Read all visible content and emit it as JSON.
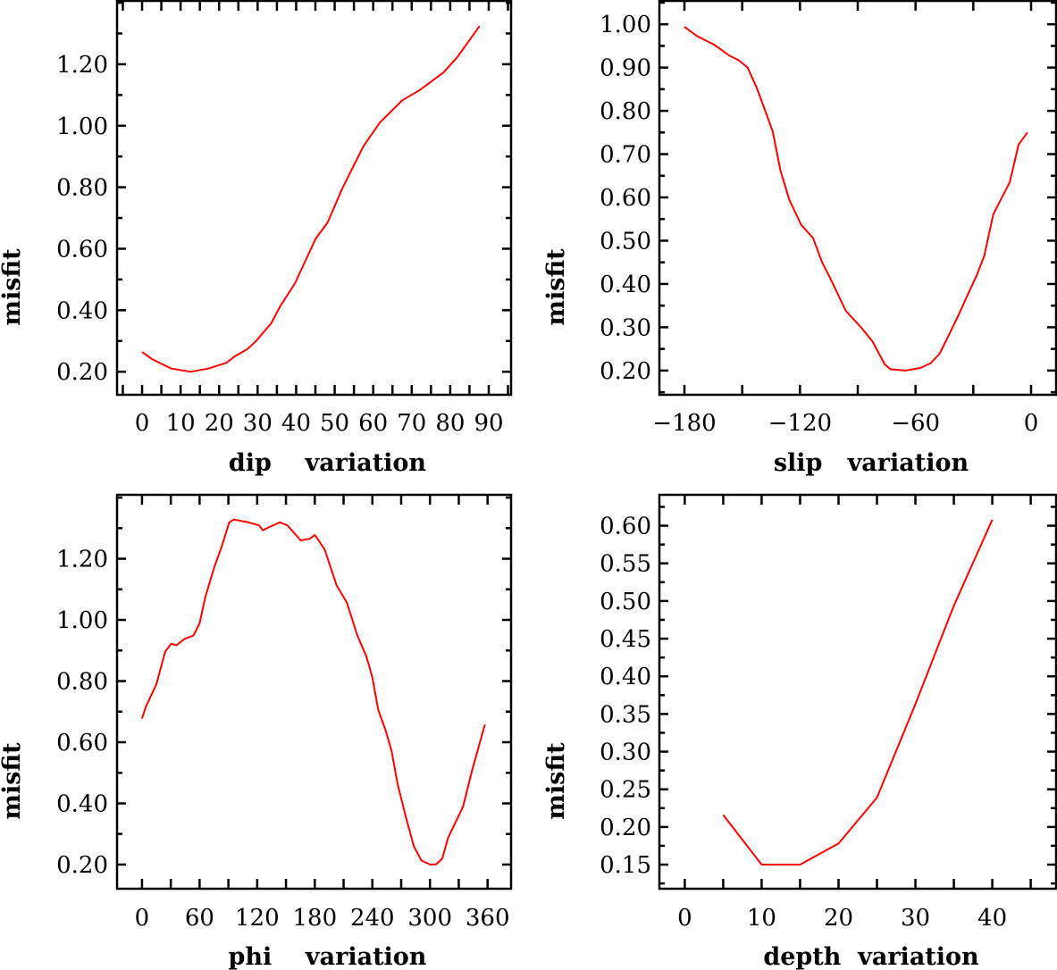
{
  "chart_data": [
    {
      "type": "line",
      "title": "",
      "xlabel": "dip    variation",
      "ylabel": "misfit",
      "color": "#ff0000",
      "xlim": [
        -6.5,
        95.8
      ],
      "ylim": [
        0.125,
        1.406
      ],
      "xticks": {
        "major": [
          0,
          10,
          20,
          30,
          40,
          50,
          60,
          70,
          80,
          90
        ],
        "labels": [
          "0",
          "10",
          "20",
          "30",
          "40",
          "50",
          "60",
          "70",
          "80",
          "90"
        ],
        "minor_step": 5
      },
      "yticks": {
        "major": [
          0.2,
          0.4,
          0.6,
          0.8,
          1.0,
          1.2
        ],
        "labels": [
          "0.20",
          "0.40",
          "0.60",
          "0.80",
          "1.00",
          "1.20"
        ],
        "minor_step": 0.1
      },
      "x": [
        0,
        2.6,
        7.6,
        12.6,
        17.2,
        21.9,
        24.2,
        27.3,
        29.6,
        33.5,
        35.8,
        39.7,
        45.1,
        48.2,
        52,
        57.4,
        61.7,
        67.5,
        72.1,
        78.3,
        81.8,
        87.6
      ],
      "y": [
        0.264,
        0.241,
        0.21,
        0.2,
        0.21,
        0.229,
        0.251,
        0.273,
        0.3,
        0.357,
        0.411,
        0.488,
        0.633,
        0.686,
        0.797,
        0.932,
        1.01,
        1.082,
        1.116,
        1.174,
        1.222,
        1.324
      ]
    },
    {
      "type": "line",
      "title": "",
      "xlabel": "slip   variation",
      "ylabel": "misfit",
      "color": "#ff0000",
      "xlim": [
        -193,
        13
      ],
      "ylim": [
        0.144,
        1.054
      ],
      "xticks": {
        "major": [
          -180,
          -120,
          -60,
          0
        ],
        "labels": [
          "−180",
          "−120",
          "−60",
          "0"
        ],
        "minor_step": 30
      },
      "yticks": {
        "major": [
          0.2,
          0.3,
          0.4,
          0.5,
          0.6,
          0.7,
          0.8,
          0.9,
          1.0
        ],
        "labels": [
          "0.20",
          "0.30",
          "0.40",
          "0.50",
          "0.60",
          "0.70",
          "0.80",
          "0.90",
          "1.00"
        ],
        "minor_step": 0.05
      },
      "x": [
        -180,
        -173.5,
        -164.3,
        -156.5,
        -151.9,
        -147.2,
        -142.6,
        -138,
        -134.1,
        -130.2,
        -125.6,
        -119.4,
        -113.2,
        -108.6,
        -103.9,
        -96.2,
        -88.5,
        -82.3,
        -76.1,
        -73,
        -65.3,
        -57.5,
        -52.1,
        -47.5,
        -42.1,
        -37.4,
        -32.8,
        -28.2,
        -24.3,
        -19.6,
        -11.1,
        -6.5,
        -1.9
      ],
      "y": [
        0.994,
        0.973,
        0.952,
        0.927,
        0.917,
        0.9,
        0.855,
        0.8,
        0.752,
        0.663,
        0.595,
        0.537,
        0.506,
        0.451,
        0.41,
        0.338,
        0.301,
        0.267,
        0.215,
        0.203,
        0.2,
        0.206,
        0.217,
        0.239,
        0.287,
        0.331,
        0.376,
        0.42,
        0.465,
        0.561,
        0.635,
        0.722,
        0.75
      ]
    },
    {
      "type": "line",
      "title": "",
      "xlabel": "phi    variation",
      "ylabel": "misfit",
      "color": "#ff0000",
      "xlim": [
        -26,
        384.5
      ],
      "ylim": [
        0.121,
        1.409
      ],
      "xticks": {
        "major": [
          0,
          60,
          120,
          180,
          240,
          300,
          360
        ],
        "labels": [
          "0",
          "60",
          "120",
          "180",
          "240",
          "300",
          "360"
        ],
        "minor_step": 30
      },
      "yticks": {
        "major": [
          0.2,
          0.4,
          0.6,
          0.8,
          1.0,
          1.2
        ],
        "labels": [
          "0.20",
          "0.40",
          "0.60",
          "0.80",
          "1.00",
          "1.20"
        ],
        "minor_step": 0.1
      },
      "x": [
        0,
        4,
        14.9,
        24.2,
        30.4,
        35.7,
        44.4,
        53.7,
        59.9,
        66.1,
        75.4,
        83.2,
        90.9,
        95.6,
        109.5,
        122,
        125.7,
        132.8,
        143.7,
        151.4,
        165.4,
        174.7,
        180,
        190.2,
        196.4,
        202.6,
        213.5,
        224.4,
        233.7,
        239.9,
        246.1,
        253.9,
        260.1,
        266.3,
        275.6,
        283.3,
        291.1,
        300.4,
        306.6,
        312.8,
        319,
        334.5,
        343.8,
        357.2
      ],
      "y": [
        0.677,
        0.716,
        0.789,
        0.896,
        0.922,
        0.917,
        0.938,
        0.949,
        0.988,
        1.076,
        1.173,
        1.241,
        1.319,
        1.328,
        1.32,
        1.309,
        1.293,
        1.304,
        1.319,
        1.309,
        1.26,
        1.265,
        1.278,
        1.231,
        1.173,
        1.114,
        1.056,
        0.949,
        0.881,
        0.813,
        0.706,
        0.638,
        0.57,
        0.463,
        0.347,
        0.259,
        0.213,
        0.2,
        0.201,
        0.22,
        0.288,
        0.39,
        0.507,
        0.658
      ]
    },
    {
      "type": "line",
      "title": "",
      "xlabel": "depth  variation",
      "ylabel": "misfit",
      "color": "#ff0000",
      "xlim": [
        -3.3,
        48.3
      ],
      "ylim": [
        0.118,
        0.641
      ],
      "xticks": {
        "major": [
          0,
          10,
          20,
          30,
          40
        ],
        "labels": [
          "0",
          "10",
          "20",
          "30",
          "40"
        ],
        "minor_step": 5
      },
      "yticks": {
        "major": [
          0.15,
          0.2,
          0.25,
          0.3,
          0.35,
          0.4,
          0.45,
          0.5,
          0.55,
          0.6
        ],
        "labels": [
          "0.15",
          "0.20",
          "0.25",
          "0.30",
          "0.35",
          "0.40",
          "0.45",
          "0.50",
          "0.55",
          "0.60"
        ],
        "minor_step": 0.025
      },
      "x": [
        5,
        10,
        15,
        20,
        25,
        30,
        35,
        40
      ],
      "y": [
        0.216,
        0.15,
        0.15,
        0.178,
        0.239,
        0.363,
        0.494,
        0.608
      ]
    }
  ]
}
